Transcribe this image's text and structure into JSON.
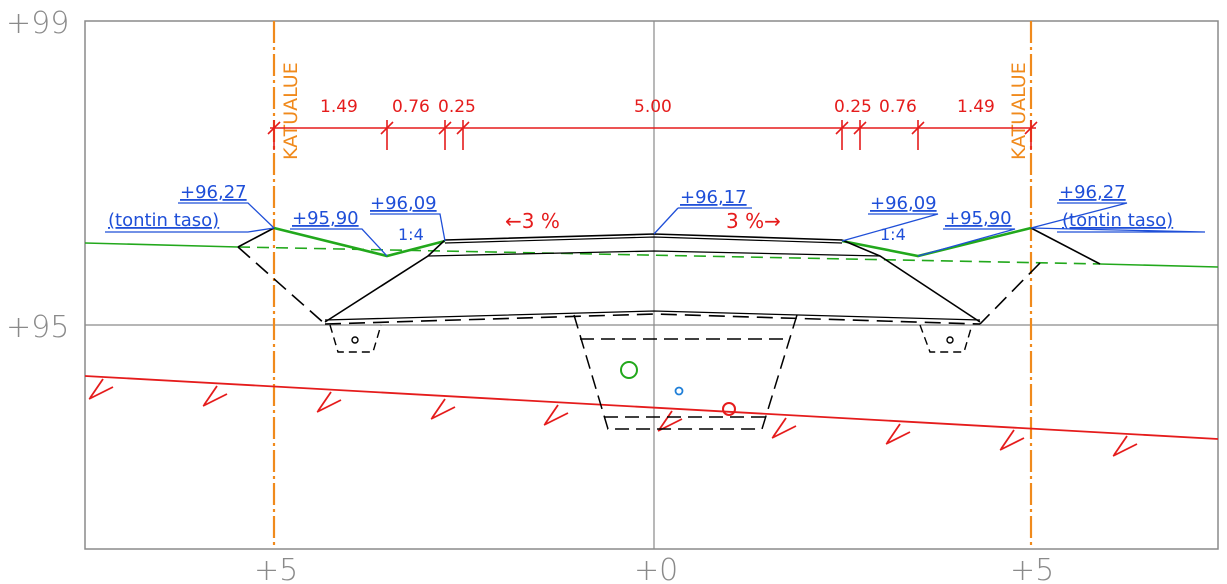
{
  "axes": {
    "elevation_top": "+99",
    "elevation_mid": "+95",
    "station_left": "+5",
    "station_center": "+0",
    "station_right": "+5"
  },
  "zones": {
    "left": "KATUALUE",
    "right": "KATUALUE"
  },
  "dimensions": {
    "left": [
      "1.49",
      "0.76",
      "0.25"
    ],
    "center": "5.00",
    "right": [
      "0.25",
      "0.76",
      "1.49"
    ]
  },
  "slopes": {
    "left": "←3 %",
    "right": "3 %→"
  },
  "elevations": {
    "left_lot": "+96,27",
    "left_lot_note": "(tontin taso)",
    "left_ditch": "+95,90",
    "left_edge": "+96,09",
    "center": "+96,17",
    "right_edge": "+96,09",
    "right_ditch": "+95,90",
    "right_lot": "+96,27",
    "right_lot_note": "(tontin taso)"
  },
  "ratios": {
    "left": "1:4",
    "right": "1:4"
  },
  "colors": {
    "grid": "#8a8a8a",
    "dimension": "#e51c1c",
    "elevation": "#1f4fd8",
    "terrain": "#22a81c",
    "zone": "#f08a1c",
    "structure": "#000000"
  }
}
